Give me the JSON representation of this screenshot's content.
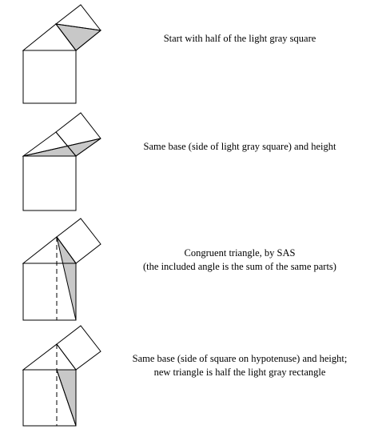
{
  "colors": {
    "stroke": "#000000",
    "fill": "#c8c8c8",
    "background": "#ffffff"
  },
  "panels": [
    {
      "caption": [
        "Start with half of the light gray square"
      ]
    },
    {
      "caption": [
        "Same base (side of light gray square) and height"
      ]
    },
    {
      "caption": [
        "Congruent triangle, by SAS",
        "(the included angle is the sum of the same parts)"
      ]
    },
    {
      "caption": [
        "Same base (side of square on hypotenuse) and height;",
        "new triangle is half the light gray rectangle"
      ]
    }
  ]
}
